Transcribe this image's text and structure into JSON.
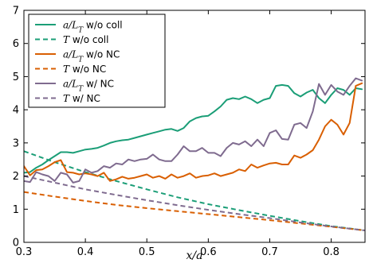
{
  "chart_data": {
    "type": "line",
    "xlabel": "x/a",
    "ylabel": "",
    "title": "",
    "xlim": [
      0.3,
      0.855
    ],
    "ylim": [
      0,
      7
    ],
    "xticks": [
      0.3,
      0.4,
      0.5,
      0.6,
      0.7,
      0.8
    ],
    "xtick_labels": [
      "0.3",
      "0.4",
      "0.5",
      "0.6",
      "0.7",
      "0.8"
    ],
    "yticks": [
      0,
      1,
      2,
      3,
      4,
      5,
      6,
      7
    ],
    "ytick_labels": [
      "0",
      "1",
      "2",
      "3",
      "4",
      "5",
      "6",
      "7"
    ],
    "grid": false,
    "legend_position": "top-left",
    "series": [
      {
        "name": "a/L_T w/o coll",
        "legend_parts": [
          {
            "text": "a/L",
            "italic": true
          },
          {
            "text": "T",
            "italic": true,
            "sub": true
          },
          {
            "text": " w/o coll",
            "italic": false
          }
        ],
        "color": "#1b9e77",
        "style": "solid",
        "x": [
          0.3,
          0.31,
          0.32,
          0.33,
          0.34,
          0.35,
          0.36,
          0.37,
          0.38,
          0.39,
          0.4,
          0.41,
          0.42,
          0.43,
          0.44,
          0.45,
          0.46,
          0.47,
          0.48,
          0.49,
          0.5,
          0.51,
          0.52,
          0.53,
          0.54,
          0.55,
          0.56,
          0.57,
          0.58,
          0.59,
          0.6,
          0.61,
          0.62,
          0.63,
          0.64,
          0.65,
          0.66,
          0.67,
          0.68,
          0.69,
          0.7,
          0.71,
          0.72,
          0.73,
          0.74,
          0.75,
          0.76,
          0.77,
          0.78,
          0.79,
          0.8,
          0.81,
          0.82,
          0.83,
          0.84,
          0.85
        ],
        "y": [
          2.1,
          2.12,
          2.25,
          2.35,
          2.48,
          2.6,
          2.72,
          2.72,
          2.7,
          2.75,
          2.8,
          2.82,
          2.85,
          2.92,
          3.0,
          3.05,
          3.08,
          3.1,
          3.15,
          3.2,
          3.25,
          3.3,
          3.35,
          3.4,
          3.42,
          3.36,
          3.45,
          3.65,
          3.75,
          3.8,
          3.82,
          3.95,
          4.1,
          4.3,
          4.35,
          4.32,
          4.4,
          4.32,
          4.2,
          4.3,
          4.35,
          4.72,
          4.75,
          4.72,
          4.5,
          4.4,
          4.52,
          4.6,
          4.35,
          4.2,
          4.45,
          4.65,
          4.6,
          4.45,
          4.65,
          4.62
        ]
      },
      {
        "name": "T w/o coll",
        "legend_parts": [
          {
            "text": "T",
            "italic": true
          },
          {
            "text": " w/o coll",
            "italic": false
          }
        ],
        "color": "#1b9e77",
        "style": "dashed",
        "x": [
          0.3,
          0.35,
          0.4,
          0.45,
          0.5,
          0.55,
          0.6,
          0.65,
          0.7,
          0.75,
          0.8,
          0.855
        ],
        "y": [
          2.75,
          2.42,
          2.12,
          1.85,
          1.6,
          1.36,
          1.15,
          0.97,
          0.8,
          0.64,
          0.49,
          0.36
        ]
      },
      {
        "name": "a/L_T w/o NC",
        "legend_parts": [
          {
            "text": "a/L",
            "italic": true
          },
          {
            "text": "T",
            "italic": true,
            "sub": true
          },
          {
            "text": " w/o NC",
            "italic": false
          }
        ],
        "color": "#d95f02",
        "style": "solid",
        "x": [
          0.3,
          0.31,
          0.32,
          0.33,
          0.34,
          0.35,
          0.36,
          0.37,
          0.38,
          0.39,
          0.4,
          0.41,
          0.42,
          0.43,
          0.44,
          0.45,
          0.46,
          0.47,
          0.48,
          0.49,
          0.5,
          0.51,
          0.52,
          0.53,
          0.54,
          0.55,
          0.56,
          0.57,
          0.58,
          0.59,
          0.6,
          0.61,
          0.62,
          0.63,
          0.64,
          0.65,
          0.66,
          0.67,
          0.68,
          0.69,
          0.7,
          0.71,
          0.72,
          0.73,
          0.74,
          0.75,
          0.76,
          0.77,
          0.78,
          0.79,
          0.8,
          0.81,
          0.82,
          0.83,
          0.84,
          0.85
        ],
        "y": [
          2.3,
          2.02,
          2.18,
          2.2,
          2.3,
          2.42,
          2.48,
          2.12,
          2.1,
          2.05,
          2.08,
          2.05,
          2.0,
          2.1,
          1.85,
          1.9,
          1.98,
          1.92,
          1.95,
          2.0,
          2.05,
          1.95,
          2.0,
          1.92,
          2.05,
          1.95,
          2.0,
          2.08,
          1.95,
          2.0,
          2.02,
          2.08,
          2.0,
          2.05,
          2.1,
          2.2,
          2.15,
          2.35,
          2.25,
          2.32,
          2.38,
          2.4,
          2.35,
          2.35,
          2.62,
          2.55,
          2.65,
          2.78,
          3.1,
          3.5,
          3.7,
          3.55,
          3.25,
          3.6,
          4.72,
          4.8
        ]
      },
      {
        "name": "T w/o NC",
        "legend_parts": [
          {
            "text": "T",
            "italic": true
          },
          {
            "text": " w/o NC",
            "italic": false
          }
        ],
        "color": "#d95f02",
        "style": "dashed",
        "x": [
          0.3,
          0.35,
          0.4,
          0.45,
          0.5,
          0.55,
          0.6,
          0.65,
          0.7,
          0.75,
          0.8,
          0.855
        ],
        "y": [
          1.52,
          1.38,
          1.25,
          1.13,
          1.03,
          0.94,
          0.85,
          0.76,
          0.67,
          0.57,
          0.47,
          0.36
        ]
      },
      {
        "name": "a/L_T w/ NC",
        "legend_parts": [
          {
            "text": "a/L",
            "italic": true
          },
          {
            "text": "T",
            "italic": true,
            "sub": true
          },
          {
            "text": " w/ NC",
            "italic": false
          }
        ],
        "color": "#7f6b8f",
        "style": "solid",
        "x": [
          0.3,
          0.31,
          0.32,
          0.33,
          0.34,
          0.35,
          0.36,
          0.37,
          0.38,
          0.39,
          0.4,
          0.41,
          0.42,
          0.43,
          0.44,
          0.45,
          0.46,
          0.47,
          0.48,
          0.49,
          0.5,
          0.51,
          0.52,
          0.53,
          0.54,
          0.55,
          0.56,
          0.57,
          0.58,
          0.59,
          0.6,
          0.61,
          0.62,
          0.63,
          0.64,
          0.65,
          0.66,
          0.67,
          0.68,
          0.69,
          0.7,
          0.71,
          0.72,
          0.73,
          0.74,
          0.75,
          0.76,
          0.77,
          0.78,
          0.79,
          0.8,
          0.81,
          0.82,
          0.83,
          0.84,
          0.85
        ],
        "y": [
          1.85,
          1.82,
          2.12,
          2.05,
          2.0,
          1.85,
          2.1,
          2.05,
          1.8,
          1.85,
          2.2,
          2.1,
          2.15,
          2.3,
          2.25,
          2.38,
          2.35,
          2.5,
          2.45,
          2.5,
          2.52,
          2.65,
          2.5,
          2.45,
          2.45,
          2.65,
          2.9,
          2.75,
          2.75,
          2.85,
          2.7,
          2.7,
          2.6,
          2.85,
          3.0,
          2.95,
          3.05,
          2.9,
          3.1,
          2.9,
          3.3,
          3.38,
          3.12,
          3.1,
          3.55,
          3.6,
          3.45,
          3.95,
          4.78,
          4.45,
          4.75,
          4.55,
          4.45,
          4.72,
          4.95,
          4.88
        ]
      },
      {
        "name": "T w/ NC",
        "legend_parts": [
          {
            "text": "T",
            "italic": true
          },
          {
            "text": " w/ NC",
            "italic": false
          }
        ],
        "color": "#7f6b8f",
        "style": "dashed",
        "x": [
          0.3,
          0.35,
          0.4,
          0.45,
          0.5,
          0.55,
          0.6,
          0.65,
          0.7,
          0.75,
          0.8,
          0.855
        ],
        "y": [
          2.0,
          1.8,
          1.6,
          1.43,
          1.27,
          1.12,
          0.98,
          0.85,
          0.73,
          0.6,
          0.48,
          0.36
        ]
      }
    ]
  }
}
